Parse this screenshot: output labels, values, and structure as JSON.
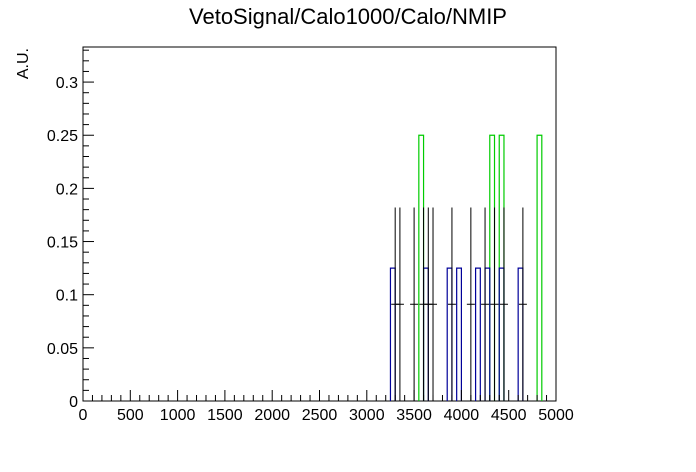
{
  "chart_data": {
    "type": "histogram",
    "title": "VetoSignal/Calo1000/Calo/NMIP",
    "xlabel": "",
    "ylabel": "A.U.",
    "xlim": [
      0,
      5000
    ],
    "ylim": [
      0,
      0.333
    ],
    "x_ticks": [
      "0",
      "500",
      "1000",
      "1500",
      "2000",
      "2500",
      "3000",
      "3500",
      "4000",
      "4500",
      "5000"
    ],
    "y_ticks": [
      "0",
      "0.05",
      "0.1",
      "0.15",
      "0.2",
      "0.25",
      "0.3"
    ],
    "grid": false,
    "legend": "none",
    "bin_width": 50,
    "series": [
      {
        "color": "#00cc00",
        "style": "step",
        "bins": [
          {
            "x": 3550,
            "y": 0.25
          },
          {
            "x": 4300,
            "y": 0.25
          },
          {
            "x": 4400,
            "y": 0.25
          },
          {
            "x": 4800,
            "y": 0.25
          }
        ]
      },
      {
        "color": "#000099",
        "style": "step",
        "bins": [
          {
            "x": 3250,
            "y": 0.125
          },
          {
            "x": 3600,
            "y": 0.125
          },
          {
            "x": 3850,
            "y": 0.125
          },
          {
            "x": 3950,
            "y": 0.125
          },
          {
            "x": 4150,
            "y": 0.125
          },
          {
            "x": 4250,
            "y": 0.125
          },
          {
            "x": 4400,
            "y": 0.125
          },
          {
            "x": 4600,
            "y": 0.125
          }
        ]
      },
      {
        "color": "#000000",
        "style": "points-error",
        "points": [
          {
            "x": 3300,
            "y": 0.091,
            "err": 0.091
          },
          {
            "x": 3350,
            "y": 0.091,
            "err": 0.091
          },
          {
            "x": 3500,
            "y": 0.091,
            "err": 0.091
          },
          {
            "x": 3600,
            "y": 0.091,
            "err": 0.091
          },
          {
            "x": 3650,
            "y": 0.091,
            "err": 0.091
          },
          {
            "x": 3700,
            "y": 0.091,
            "err": 0.091
          },
          {
            "x": 3900,
            "y": 0.091,
            "err": 0.091
          },
          {
            "x": 4100,
            "y": 0.091,
            "err": 0.091
          },
          {
            "x": 4250,
            "y": 0.091,
            "err": 0.091
          },
          {
            "x": 4350,
            "y": 0.091,
            "err": 0.091
          },
          {
            "x": 4450,
            "y": 0.091,
            "err": 0.091
          },
          {
            "x": 4650,
            "y": 0.091,
            "err": 0.091
          }
        ]
      }
    ]
  }
}
